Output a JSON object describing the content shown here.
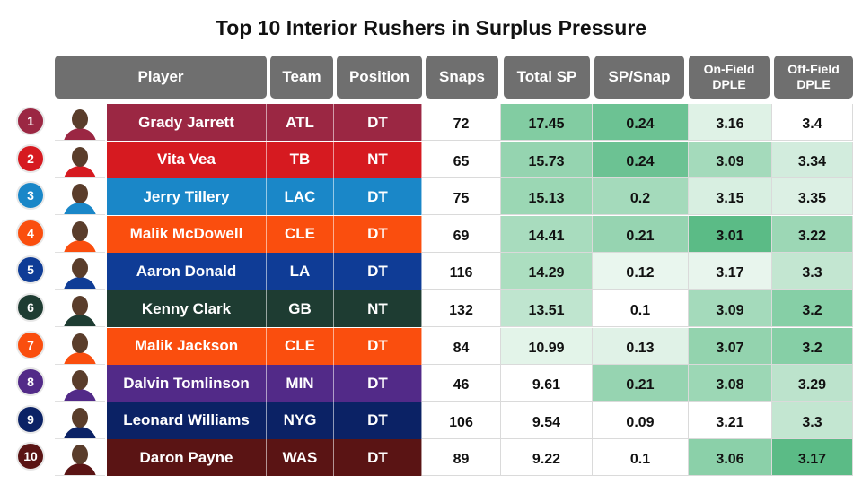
{
  "chart_data": {
    "type": "table",
    "title": "Top 10 Interior Rushers in Surplus Pressure",
    "columns": [
      "Player",
      "Team",
      "Position",
      "Snaps",
      "Total SP",
      "SP/Snap",
      "On-Field DPLE",
      "Off-Field DPLE"
    ],
    "rows": [
      {
        "rank": "1",
        "player": "Grady Jarrett",
        "team": "ATL",
        "position": "DT",
        "snaps": "72",
        "total_sp": "17.45",
        "sp_snap": "0.24",
        "on_dple": "3.16",
        "off_dple": "3.4",
        "team_color": "#9b2743",
        "sp_color": "#82cca2",
        "sps_color": "#6cc293",
        "on_color": "#dff2e6",
        "off_color": "#ffffff"
      },
      {
        "rank": "2",
        "player": "Vita Vea",
        "team": "TB",
        "position": "NT",
        "snaps": "65",
        "total_sp": "15.73",
        "sp_snap": "0.24",
        "on_dple": "3.09",
        "off_dple": "3.34",
        "team_color": "#d61a20",
        "sp_color": "#95d4b0",
        "sps_color": "#6cc293",
        "on_color": "#a4dabb",
        "off_color": "#d2ecdd"
      },
      {
        "rank": "3",
        "player": "Jerry Tillery",
        "team": "LAC",
        "position": "DT",
        "snaps": "75",
        "total_sp": "15.13",
        "sp_snap": "0.2",
        "on_dple": "3.15",
        "off_dple": "3.35",
        "team_color": "#1a87c8",
        "sp_color": "#9bd7b4",
        "sps_color": "#a4dabb",
        "on_color": "#d8efe1",
        "off_color": "#dcf0e4"
      },
      {
        "rank": "4",
        "player": "Malik McDowell",
        "team": "CLE",
        "position": "DT",
        "snaps": "69",
        "total_sp": "14.41",
        "sp_snap": "0.21",
        "on_dple": "3.01",
        "off_dple": "3.22",
        "team_color": "#fa4e0e",
        "sp_color": "#a8dcbe",
        "sps_color": "#96d4b1",
        "on_color": "#5bbb86",
        "off_color": "#9cd7b5"
      },
      {
        "rank": "5",
        "player": "Aaron Donald",
        "team": "LA",
        "position": "DT",
        "snaps": "116",
        "total_sp": "14.29",
        "sp_snap": "0.12",
        "on_dple": "3.17",
        "off_dple": "3.3",
        "team_color": "#0f3c96",
        "sp_color": "#acdec0",
        "sps_color": "#e9f6ee",
        "on_color": "#e8f5ed",
        "off_color": "#c3e6d1"
      },
      {
        "rank": "6",
        "player": "Kenny Clark",
        "team": "GB",
        "position": "NT",
        "snaps": "132",
        "total_sp": "13.51",
        "sp_snap": "0.1",
        "on_dple": "3.09",
        "off_dple": "3.2",
        "team_color": "#1e3c32",
        "sp_color": "#bfe5cf",
        "sps_color": "#ffffff",
        "on_color": "#a4dabb",
        "off_color": "#86cfa6"
      },
      {
        "rank": "7",
        "player": "Malik Jackson",
        "team": "CLE",
        "position": "DT",
        "snaps": "84",
        "total_sp": "10.99",
        "sp_snap": "0.13",
        "on_dple": "3.07",
        "off_dple": "3.2",
        "team_color": "#fa4e0e",
        "sp_color": "#e3f4e9",
        "sps_color": "#e0f2e7",
        "on_color": "#93d3ae",
        "off_color": "#86cfa6"
      },
      {
        "rank": "8",
        "player": "Dalvin Tomlinson",
        "team": "MIN",
        "position": "DT",
        "snaps": "46",
        "total_sp": "9.61",
        "sp_snap": "0.21",
        "on_dple": "3.08",
        "off_dple": "3.29",
        "team_color": "#522a88",
        "sp_color": "#ffffff",
        "sps_color": "#96d4b1",
        "on_color": "#9cd7b5",
        "off_color": "#bce3cc"
      },
      {
        "rank": "9",
        "player": "Leonard Williams",
        "team": "NYG",
        "position": "DT",
        "snaps": "106",
        "total_sp": "9.54",
        "sp_snap": "0.09",
        "on_dple": "3.21",
        "off_dple": "3.3",
        "team_color": "#0b2265",
        "sp_color": "#ffffff",
        "sps_color": "#ffffff",
        "on_color": "#ffffff",
        "off_color": "#c3e6d1"
      },
      {
        "rank": "10",
        "player": "Daron Payne",
        "team": "WAS",
        "position": "DT",
        "snaps": "89",
        "total_sp": "9.22",
        "sp_snap": "0.1",
        "on_dple": "3.06",
        "off_dple": "3.17",
        "team_color": "#5a1414",
        "sp_color": "#ffffff",
        "sps_color": "#ffffff",
        "on_color": "#8bd0a9",
        "off_color": "#5bbb86"
      }
    ]
  }
}
